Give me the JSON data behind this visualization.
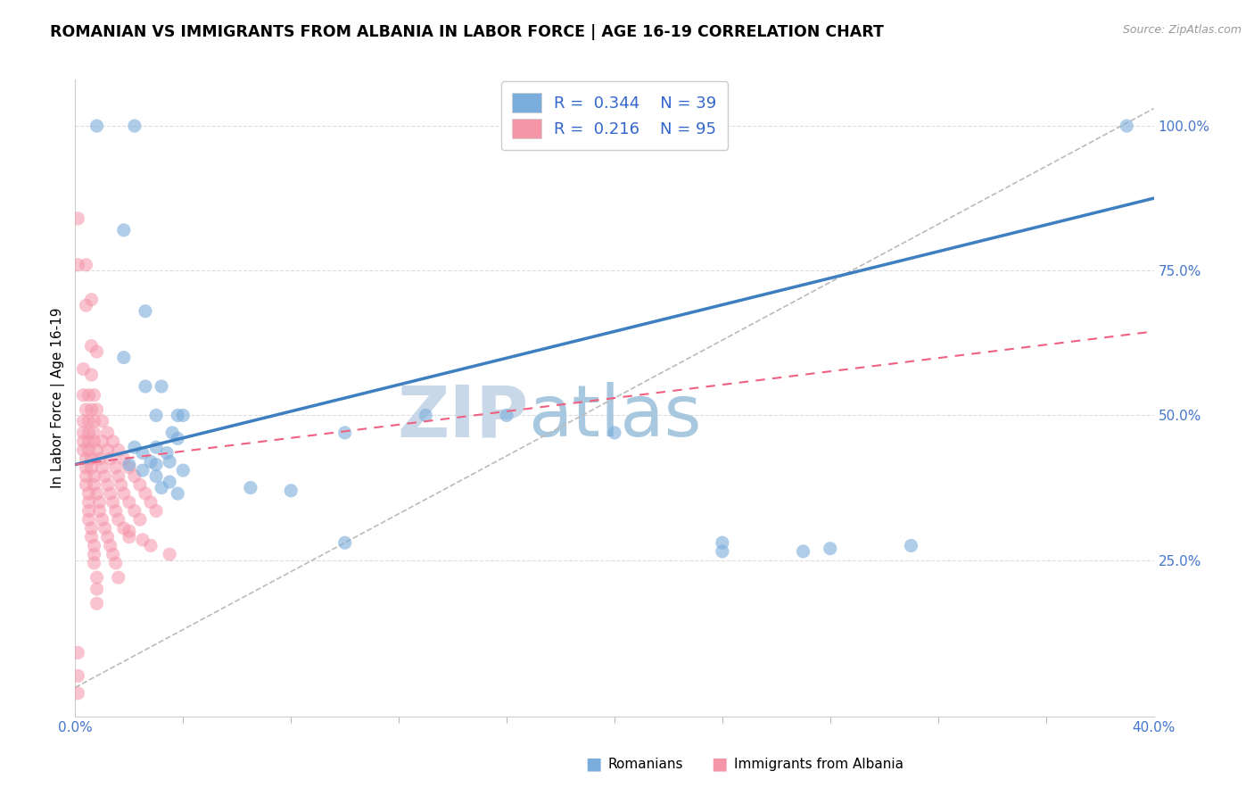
{
  "title": "ROMANIAN VS IMMIGRANTS FROM ALBANIA IN LABOR FORCE | AGE 16-19 CORRELATION CHART",
  "source_text": "Source: ZipAtlas.com",
  "ylabel": "In Labor Force | Age 16-19",
  "xlim": [
    0.0,
    0.4
  ],
  "ylim": [
    -0.02,
    1.08
  ],
  "y_ticks": [
    0.25,
    0.5,
    0.75,
    1.0
  ],
  "y_tick_labels": [
    "25.0%",
    "50.0%",
    "75.0%",
    "100.0%"
  ],
  "watermark_zip": "ZIP",
  "watermark_atlas": "atlas",
  "watermark_color_zip": "#c8d8e8",
  "watermark_color_atlas": "#a8c8e0",
  "legend_r1": "R = 0.344",
  "legend_n1": "N = 39",
  "legend_r2": "R = 0.216",
  "legend_n2": "N = 95",
  "blue_color": "#7aaddb",
  "pink_color": "#f595a8",
  "blue_scatter": [
    [
      0.008,
      1.0
    ],
    [
      0.022,
      1.0
    ],
    [
      0.018,
      0.82
    ],
    [
      0.026,
      0.68
    ],
    [
      0.018,
      0.6
    ],
    [
      0.026,
      0.55
    ],
    [
      0.032,
      0.55
    ],
    [
      0.03,
      0.5
    ],
    [
      0.038,
      0.5
    ],
    [
      0.04,
      0.5
    ],
    [
      0.036,
      0.47
    ],
    [
      0.038,
      0.46
    ],
    [
      0.022,
      0.445
    ],
    [
      0.03,
      0.445
    ],
    [
      0.025,
      0.435
    ],
    [
      0.034,
      0.435
    ],
    [
      0.028,
      0.42
    ],
    [
      0.035,
      0.42
    ],
    [
      0.02,
      0.415
    ],
    [
      0.03,
      0.415
    ],
    [
      0.025,
      0.405
    ],
    [
      0.04,
      0.405
    ],
    [
      0.03,
      0.395
    ],
    [
      0.035,
      0.385
    ],
    [
      0.032,
      0.375
    ],
    [
      0.038,
      0.365
    ],
    [
      0.065,
      0.375
    ],
    [
      0.08,
      0.37
    ],
    [
      0.1,
      0.47
    ],
    [
      0.13,
      0.5
    ],
    [
      0.16,
      0.5
    ],
    [
      0.2,
      0.47
    ],
    [
      0.24,
      0.28
    ],
    [
      0.24,
      0.265
    ],
    [
      0.27,
      0.265
    ],
    [
      0.28,
      0.27
    ],
    [
      0.31,
      0.275
    ],
    [
      0.39,
      1.0
    ],
    [
      0.1,
      0.28
    ]
  ],
  "pink_scatter": [
    [
      0.001,
      0.84
    ],
    [
      0.001,
      0.76
    ],
    [
      0.004,
      0.76
    ],
    [
      0.004,
      0.69
    ],
    [
      0.006,
      0.7
    ],
    [
      0.006,
      0.62
    ],
    [
      0.008,
      0.61
    ],
    [
      0.003,
      0.58
    ],
    [
      0.006,
      0.57
    ],
    [
      0.003,
      0.535
    ],
    [
      0.005,
      0.535
    ],
    [
      0.007,
      0.535
    ],
    [
      0.004,
      0.51
    ],
    [
      0.006,
      0.51
    ],
    [
      0.008,
      0.51
    ],
    [
      0.003,
      0.49
    ],
    [
      0.005,
      0.49
    ],
    [
      0.007,
      0.49
    ],
    [
      0.01,
      0.49
    ],
    [
      0.003,
      0.47
    ],
    [
      0.005,
      0.47
    ],
    [
      0.007,
      0.47
    ],
    [
      0.012,
      0.47
    ],
    [
      0.003,
      0.455
    ],
    [
      0.005,
      0.455
    ],
    [
      0.007,
      0.455
    ],
    [
      0.01,
      0.455
    ],
    [
      0.014,
      0.455
    ],
    [
      0.003,
      0.44
    ],
    [
      0.005,
      0.44
    ],
    [
      0.008,
      0.44
    ],
    [
      0.012,
      0.44
    ],
    [
      0.016,
      0.44
    ],
    [
      0.004,
      0.425
    ],
    [
      0.006,
      0.425
    ],
    [
      0.009,
      0.425
    ],
    [
      0.013,
      0.425
    ],
    [
      0.018,
      0.425
    ],
    [
      0.004,
      0.41
    ],
    [
      0.006,
      0.41
    ],
    [
      0.01,
      0.41
    ],
    [
      0.015,
      0.41
    ],
    [
      0.02,
      0.41
    ],
    [
      0.004,
      0.395
    ],
    [
      0.007,
      0.395
    ],
    [
      0.011,
      0.395
    ],
    [
      0.016,
      0.395
    ],
    [
      0.022,
      0.395
    ],
    [
      0.004,
      0.38
    ],
    [
      0.007,
      0.38
    ],
    [
      0.012,
      0.38
    ],
    [
      0.017,
      0.38
    ],
    [
      0.024,
      0.38
    ],
    [
      0.005,
      0.365
    ],
    [
      0.008,
      0.365
    ],
    [
      0.013,
      0.365
    ],
    [
      0.018,
      0.365
    ],
    [
      0.026,
      0.365
    ],
    [
      0.005,
      0.35
    ],
    [
      0.009,
      0.35
    ],
    [
      0.014,
      0.35
    ],
    [
      0.02,
      0.35
    ],
    [
      0.028,
      0.35
    ],
    [
      0.005,
      0.335
    ],
    [
      0.009,
      0.335
    ],
    [
      0.015,
      0.335
    ],
    [
      0.022,
      0.335
    ],
    [
      0.03,
      0.335
    ],
    [
      0.005,
      0.32
    ],
    [
      0.01,
      0.32
    ],
    [
      0.016,
      0.32
    ],
    [
      0.024,
      0.32
    ],
    [
      0.006,
      0.305
    ],
    [
      0.011,
      0.305
    ],
    [
      0.018,
      0.305
    ],
    [
      0.006,
      0.29
    ],
    [
      0.012,
      0.29
    ],
    [
      0.02,
      0.29
    ],
    [
      0.007,
      0.275
    ],
    [
      0.013,
      0.275
    ],
    [
      0.007,
      0.26
    ],
    [
      0.014,
      0.26
    ],
    [
      0.007,
      0.245
    ],
    [
      0.015,
      0.245
    ],
    [
      0.008,
      0.22
    ],
    [
      0.016,
      0.22
    ],
    [
      0.008,
      0.2
    ],
    [
      0.008,
      0.175
    ],
    [
      0.001,
      0.09
    ],
    [
      0.001,
      0.05
    ],
    [
      0.001,
      0.02
    ],
    [
      0.02,
      0.3
    ],
    [
      0.025,
      0.285
    ],
    [
      0.028,
      0.275
    ],
    [
      0.035,
      0.26
    ]
  ],
  "blue_line": [
    0.0,
    0.415,
    0.4,
    0.875
  ],
  "pink_line": [
    0.0,
    0.415,
    0.4,
    0.645
  ],
  "ref_line": [
    0.0,
    0.03,
    0.4,
    1.03
  ],
  "title_fontsize": 12.5,
  "axis_label_fontsize": 11,
  "tick_fontsize": 11,
  "legend_fontsize": 13,
  "watermark_fontsize": 58
}
